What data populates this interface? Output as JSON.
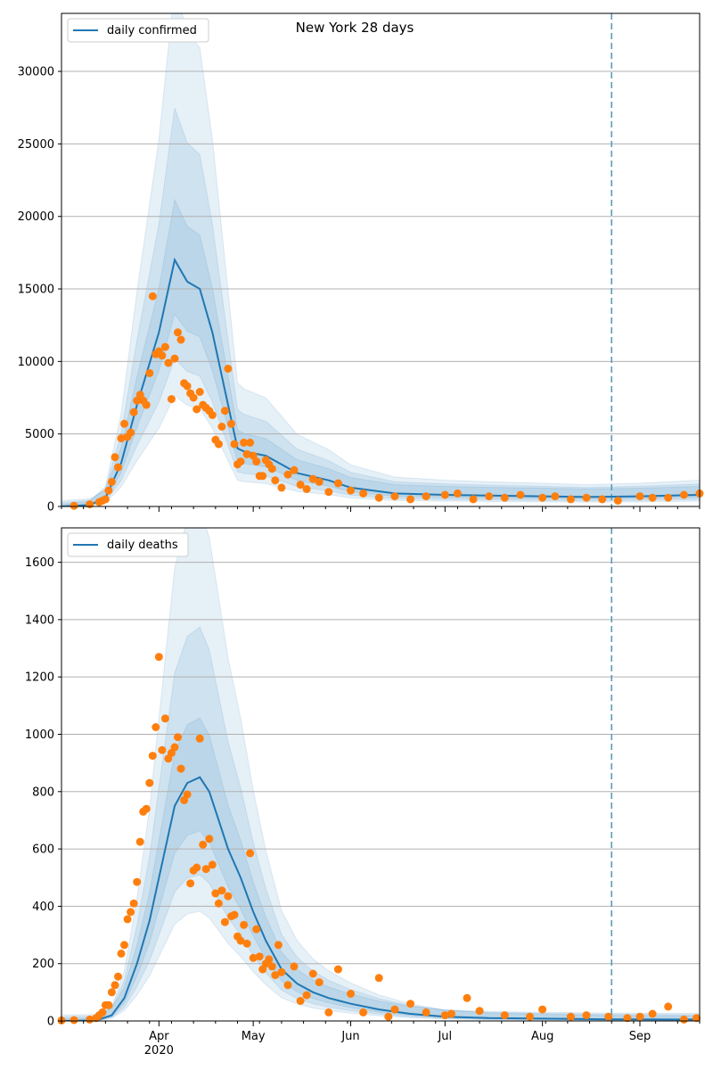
{
  "chart_data": [
    {
      "type": "line",
      "title": "New York 28 days",
      "ylim": [
        0,
        34000
      ],
      "yticks": [
        0,
        5000,
        10000,
        15000,
        20000,
        25000,
        30000
      ],
      "grid": "horizontal",
      "legend_position": "top-left",
      "vline_date": "2020-08-23",
      "colors": {
        "line": "#1f77b4",
        "points": "#ff7f0e",
        "band": "#1f77b4",
        "vline": "#5b9bbd"
      },
      "series": [
        {
          "name": "daily confirmed",
          "kind": "line",
          "x": [
            "2020-03-01",
            "2020-03-10",
            "2020-03-15",
            "2020-03-20",
            "2020-03-25",
            "2020-04-01",
            "2020-04-06",
            "2020-04-10",
            "2020-04-14",
            "2020-04-18",
            "2020-04-22",
            "2020-04-26",
            "2020-04-28",
            "2020-05-05",
            "2020-05-15",
            "2020-05-25",
            "2020-06-01",
            "2020-06-15",
            "2020-07-01",
            "2020-07-15",
            "2020-08-01",
            "2020-08-15",
            "2020-09-01",
            "2020-09-20"
          ],
          "y": [
            0,
            100,
            600,
            3000,
            7000,
            12000,
            17000,
            15500,
            15000,
            12000,
            8000,
            4000,
            3800,
            3500,
            2300,
            1800,
            1300,
            900,
            800,
            750,
            700,
            650,
            700,
            800
          ]
        },
        {
          "name": "",
          "kind": "scatter",
          "x": [
            "2020-03-05",
            "2020-03-10",
            "2020-03-13",
            "2020-03-14",
            "2020-03-15",
            "2020-03-16",
            "2020-03-17",
            "2020-03-18",
            "2020-03-19",
            "2020-03-20",
            "2020-03-21",
            "2020-03-22",
            "2020-03-23",
            "2020-03-24",
            "2020-03-25",
            "2020-03-26",
            "2020-03-27",
            "2020-03-28",
            "2020-03-29",
            "2020-03-30",
            "2020-03-31",
            "2020-04-01",
            "2020-04-02",
            "2020-04-03",
            "2020-04-04",
            "2020-04-05",
            "2020-04-06",
            "2020-04-07",
            "2020-04-08",
            "2020-04-09",
            "2020-04-10",
            "2020-04-11",
            "2020-04-12",
            "2020-04-13",
            "2020-04-14",
            "2020-04-15",
            "2020-04-16",
            "2020-04-17",
            "2020-04-18",
            "2020-04-19",
            "2020-04-20",
            "2020-04-21",
            "2020-04-22",
            "2020-04-23",
            "2020-04-24",
            "2020-04-25",
            "2020-04-26",
            "2020-04-27",
            "2020-04-28",
            "2020-04-29",
            "2020-04-30",
            "2020-05-01",
            "2020-05-02",
            "2020-05-03",
            "2020-05-04",
            "2020-05-05",
            "2020-05-06",
            "2020-05-07",
            "2020-05-08",
            "2020-05-10",
            "2020-05-12",
            "2020-05-14",
            "2020-05-16",
            "2020-05-18",
            "2020-05-20",
            "2020-05-22",
            "2020-05-25",
            "2020-05-28",
            "2020-06-01",
            "2020-06-05",
            "2020-06-10",
            "2020-06-15",
            "2020-06-20",
            "2020-06-25",
            "2020-07-01",
            "2020-07-05",
            "2020-07-10",
            "2020-07-15",
            "2020-07-20",
            "2020-07-25",
            "2020-08-01",
            "2020-08-05",
            "2020-08-10",
            "2020-08-15",
            "2020-08-20",
            "2020-08-25",
            "2020-09-01",
            "2020-09-05",
            "2020-09-10",
            "2020-09-15",
            "2020-09-20"
          ],
          "y": [
            50,
            150,
            300,
            400,
            500,
            1100,
            1700,
            3400,
            2700,
            4700,
            5700,
            4800,
            5100,
            6500,
            7300,
            7700,
            7300,
            7000,
            9200,
            14500,
            10500,
            10700,
            10400,
            11000,
            9900,
            7400,
            10200,
            12000,
            11500,
            8500,
            8300,
            7800,
            7500,
            6700,
            7900,
            7000,
            6800,
            6600,
            6300,
            4600,
            4300,
            5500,
            6600,
            9500,
            5700,
            4300,
            2900,
            3100,
            4400,
            3600,
            4400,
            3500,
            3100,
            2100,
            2100,
            3200,
            2900,
            2600,
            1800,
            1300,
            2200,
            2500,
            1500,
            1200,
            1900,
            1700,
            1000,
            1600,
            1100,
            900,
            600,
            700,
            500,
            700,
            800,
            900,
            500,
            700,
            600,
            800,
            600,
            700,
            500,
            600,
            500,
            400,
            700,
            600,
            600,
            800,
            900
          ]
        }
      ]
    },
    {
      "type": "line",
      "title": "",
      "ylim": [
        0,
        1720
      ],
      "yticks": [
        0,
        200,
        400,
        600,
        800,
        1000,
        1200,
        1400,
        1600
      ],
      "xticks": [
        {
          "label": "Apr",
          "sub": "2020",
          "date": "2020-04-01"
        },
        {
          "label": "May",
          "sub": "",
          "date": "2020-05-01"
        },
        {
          "label": "Jun",
          "sub": "",
          "date": "2020-06-01"
        },
        {
          "label": "Jul",
          "sub": "",
          "date": "2020-07-01"
        },
        {
          "label": "Aug",
          "sub": "",
          "date": "2020-08-01"
        },
        {
          "label": "Sep",
          "sub": "",
          "date": "2020-09-01"
        }
      ],
      "xrange": [
        "2020-03-01",
        "2020-09-20"
      ],
      "grid": "horizontal",
      "legend_position": "top-left",
      "vline_date": "2020-08-23",
      "series": [
        {
          "name": "daily deaths",
          "kind": "line",
          "x": [
            "2020-03-01",
            "2020-03-12",
            "2020-03-17",
            "2020-03-21",
            "2020-03-25",
            "2020-03-29",
            "2020-04-02",
            "2020-04-06",
            "2020-04-10",
            "2020-04-14",
            "2020-04-17",
            "2020-04-20",
            "2020-04-23",
            "2020-04-27",
            "2020-05-01",
            "2020-05-05",
            "2020-05-10",
            "2020-05-15",
            "2020-05-20",
            "2020-05-25",
            "2020-06-01",
            "2020-06-10",
            "2020-06-20",
            "2020-07-01",
            "2020-07-15",
            "2020-08-01",
            "2020-08-20",
            "2020-09-20"
          ],
          "y": [
            0,
            2,
            20,
            80,
            200,
            350,
            550,
            750,
            830,
            850,
            800,
            700,
            600,
            500,
            380,
            280,
            180,
            130,
            100,
            80,
            60,
            40,
            25,
            15,
            10,
            8,
            6,
            5
          ]
        },
        {
          "name": "",
          "kind": "scatter",
          "x": [
            "2020-03-01",
            "2020-03-05",
            "2020-03-10",
            "2020-03-12",
            "2020-03-13",
            "2020-03-14",
            "2020-03-15",
            "2020-03-16",
            "2020-03-17",
            "2020-03-18",
            "2020-03-19",
            "2020-03-20",
            "2020-03-21",
            "2020-03-22",
            "2020-03-23",
            "2020-03-24",
            "2020-03-25",
            "2020-03-26",
            "2020-03-27",
            "2020-03-28",
            "2020-03-29",
            "2020-03-30",
            "2020-03-31",
            "2020-04-01",
            "2020-04-02",
            "2020-04-03",
            "2020-04-04",
            "2020-04-05",
            "2020-04-06",
            "2020-04-07",
            "2020-04-08",
            "2020-04-09",
            "2020-04-10",
            "2020-04-11",
            "2020-04-12",
            "2020-04-13",
            "2020-04-14",
            "2020-04-15",
            "2020-04-16",
            "2020-04-17",
            "2020-04-18",
            "2020-04-19",
            "2020-04-20",
            "2020-04-21",
            "2020-04-22",
            "2020-04-23",
            "2020-04-24",
            "2020-04-25",
            "2020-04-26",
            "2020-04-27",
            "2020-04-28",
            "2020-04-29",
            "2020-04-30",
            "2020-05-01",
            "2020-05-02",
            "2020-05-03",
            "2020-05-04",
            "2020-05-05",
            "2020-05-06",
            "2020-05-07",
            "2020-05-08",
            "2020-05-09",
            "2020-05-10",
            "2020-05-12",
            "2020-05-14",
            "2020-05-16",
            "2020-05-18",
            "2020-05-20",
            "2020-05-22",
            "2020-05-25",
            "2020-05-28",
            "2020-06-01",
            "2020-06-05",
            "2020-06-10",
            "2020-06-13",
            "2020-06-15",
            "2020-06-20",
            "2020-06-25",
            "2020-07-01",
            "2020-07-03",
            "2020-07-08",
            "2020-07-12",
            "2020-07-20",
            "2020-07-28",
            "2020-08-01",
            "2020-08-10",
            "2020-08-15",
            "2020-08-22",
            "2020-08-28",
            "2020-09-01",
            "2020-09-05",
            "2020-09-10",
            "2020-09-15",
            "2020-09-19"
          ],
          "y": [
            2,
            3,
            5,
            10,
            20,
            30,
            55,
            55,
            100,
            125,
            155,
            235,
            265,
            355,
            380,
            410,
            485,
            625,
            730,
            740,
            830,
            925,
            1025,
            1270,
            945,
            1055,
            915,
            935,
            955,
            990,
            880,
            770,
            790,
            480,
            525,
            535,
            985,
            615,
            530,
            635,
            545,
            445,
            410,
            455,
            345,
            435,
            365,
            370,
            295,
            280,
            335,
            270,
            585,
            220,
            320,
            225,
            180,
            200,
            215,
            190,
            160,
            265,
            170,
            125,
            190,
            70,
            90,
            165,
            135,
            30,
            180,
            95,
            30,
            150,
            15,
            40,
            60,
            30,
            20,
            25,
            80,
            35,
            20,
            15,
            40,
            15,
            20,
            15,
            10,
            15,
            25,
            50,
            5,
            10
          ]
        }
      ]
    }
  ]
}
